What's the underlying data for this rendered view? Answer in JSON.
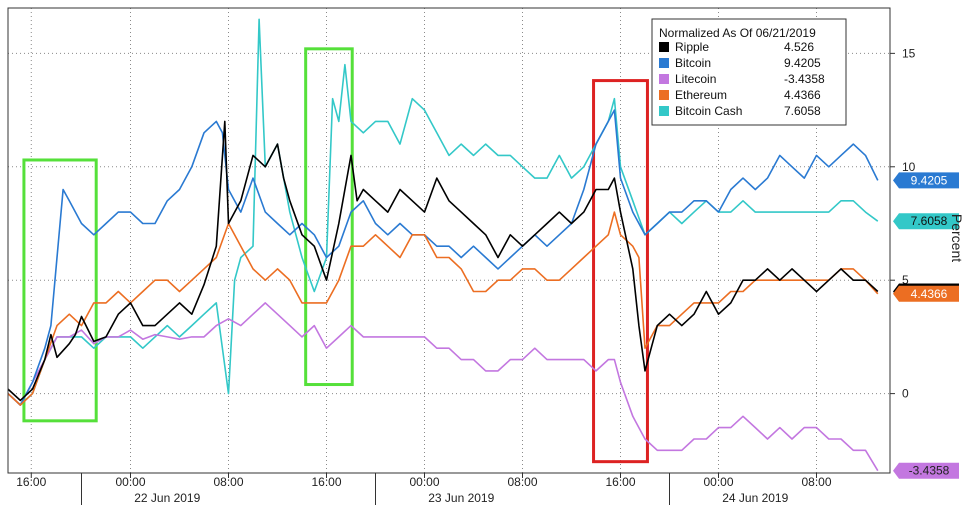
{
  "chart_data": {
    "type": "line",
    "title": "",
    "ylabel": "Percent",
    "ylim": [
      -3.5,
      17
    ],
    "y_ticks": [
      0,
      5,
      10,
      15
    ],
    "grid": true,
    "legend": {
      "placement": "top-right",
      "title": "Normalized As Of 06/21/2019"
    },
    "x_ticks": [
      {
        "pos": 15.9,
        "label": "16:00"
      },
      {
        "pos": 24,
        "label": "00:00"
      },
      {
        "pos": 32,
        "label": "08:00"
      },
      {
        "pos": 40,
        "label": "16:00"
      },
      {
        "pos": 48,
        "label": "00:00"
      },
      {
        "pos": 56,
        "label": "08:00"
      },
      {
        "pos": 64,
        "label": "16:00"
      },
      {
        "pos": 72,
        "label": "00:00"
      },
      {
        "pos": 80,
        "label": "08:00"
      }
    ],
    "x_dividers": [
      20,
      44,
      68
    ],
    "date_labels": [
      {
        "pos": 27,
        "label": "22 Jun 2019"
      },
      {
        "pos": 51,
        "label": "23 Jun 2019"
      },
      {
        "pos": 75,
        "label": "24 Jun 2019"
      }
    ],
    "highlights": [
      {
        "x0": 15.3,
        "x1": 21.2,
        "y0": -1.2,
        "y1": 10.3,
        "color": "#55e03a"
      },
      {
        "x0": 38.3,
        "x1": 42.1,
        "y0": 0.4,
        "y1": 15.2,
        "color": "#55e03a"
      },
      {
        "x0": 61.8,
        "x1": 66.2,
        "y0": -3.0,
        "y1": 13.8,
        "color": "#dd2222"
      }
    ],
    "series": [
      {
        "name": "Ripple",
        "value_label": "4.526",
        "color": "#000000",
        "x": [
          14.0,
          15.0,
          16.0,
          17.0,
          17.5,
          18.0,
          19.0,
          19.5,
          20.0,
          21.0,
          22.0,
          23.0,
          24.0,
          25.0,
          26.0,
          27.0,
          28.0,
          29.0,
          30.0,
          31.0,
          31.7,
          32.0,
          33.0,
          34.0,
          35.0,
          36.0,
          36.5,
          37.0,
          38.0,
          39.0,
          40.0,
          41.0,
          42.0,
          42.5,
          43.0,
          44.0,
          45.0,
          46.0,
          47.0,
          48.0,
          49.0,
          50.0,
          51.0,
          52.0,
          53.0,
          54.0,
          55.0,
          56.0,
          57.0,
          58.0,
          59.0,
          60.0,
          61.0,
          62.0,
          63.0,
          63.5,
          64.0,
          65.0,
          65.5,
          66.0,
          67.0,
          68.0,
          69.0,
          70.0,
          71.0,
          72.0,
          73.0,
          74.0,
          75.0,
          76.0,
          77.0,
          78.0,
          79.0,
          80.0,
          81.0,
          82.0,
          83.0,
          84.0,
          85.0
        ],
        "y": [
          0.2,
          -0.3,
          0.2,
          1.5,
          2.6,
          1.6,
          2.2,
          2.6,
          3.4,
          2.3,
          2.5,
          3.5,
          4.0,
          3.0,
          3.0,
          3.5,
          4.0,
          3.5,
          4.8,
          6.5,
          12.0,
          7.5,
          8.5,
          10.5,
          10.0,
          11.0,
          9.5,
          8.5,
          7.0,
          6.5,
          5.0,
          7.5,
          10.5,
          8.5,
          9.0,
          8.5,
          8.0,
          9.0,
          8.5,
          8.0,
          9.5,
          8.5,
          8.0,
          7.5,
          7.0,
          6.0,
          7.0,
          6.5,
          7.0,
          7.5,
          8.0,
          7.5,
          8.0,
          9.0,
          9.0,
          9.5,
          8.0,
          5.5,
          3.0,
          1.0,
          3.0,
          3.5,
          3.0,
          3.5,
          4.5,
          3.5,
          4.0,
          5.0,
          5.0,
          5.5,
          5.0,
          5.5,
          5.0,
          4.5,
          5.0,
          5.5,
          5.0,
          5.0,
          4.5
        ]
      },
      {
        "name": "Bitcoin",
        "value_label": "9.4205",
        "color": "#2a7ad2",
        "x": [
          14.0,
          15.0,
          16.0,
          17.0,
          17.5,
          18.0,
          18.5,
          19.0,
          20.0,
          21.0,
          22.0,
          23.0,
          24.0,
          25.0,
          26.0,
          27.0,
          28.0,
          29.0,
          30.0,
          31.0,
          31.5,
          32.0,
          33.0,
          34.0,
          35.0,
          36.0,
          37.0,
          38.0,
          39.0,
          40.0,
          41.0,
          42.0,
          43.0,
          44.0,
          45.0,
          46.0,
          47.0,
          48.0,
          49.0,
          50.0,
          51.0,
          52.0,
          53.0,
          54.0,
          55.0,
          56.0,
          57.0,
          58.0,
          59.0,
          60.0,
          61.0,
          62.0,
          63.0,
          63.5,
          64.0,
          65.0,
          66.0,
          67.0,
          68.0,
          69.0,
          70.0,
          71.0,
          72.0,
          73.0,
          74.0,
          75.0,
          76.0,
          77.0,
          78.0,
          79.0,
          80.0,
          81.0,
          82.0,
          83.0,
          84.0,
          85.0
        ],
        "y": [
          0.0,
          -0.5,
          0.5,
          2.0,
          3.0,
          6.0,
          9.0,
          8.5,
          7.5,
          7.0,
          7.5,
          8.0,
          8.0,
          7.5,
          7.5,
          8.5,
          9.0,
          10.0,
          11.5,
          12.0,
          11.5,
          9.0,
          8.0,
          9.5,
          8.0,
          7.5,
          7.0,
          7.5,
          7.0,
          6.0,
          6.5,
          8.0,
          8.5,
          7.5,
          7.0,
          7.5,
          7.0,
          7.0,
          6.5,
          6.5,
          6.0,
          6.5,
          6.0,
          5.5,
          6.0,
          6.5,
          7.0,
          6.5,
          7.0,
          7.5,
          9.0,
          11.0,
          12.0,
          12.5,
          9.5,
          8.0,
          7.0,
          7.5,
          8.0,
          8.0,
          8.5,
          8.5,
          8.0,
          9.0,
          9.5,
          9.0,
          9.5,
          10.5,
          10.0,
          9.5,
          10.5,
          10.0,
          10.5,
          11.0,
          10.5,
          9.4
        ]
      },
      {
        "name": "Litecoin",
        "value_label": "-3.4358",
        "color": "#c377e0",
        "x": [
          14.0,
          15.0,
          16.0,
          17.0,
          18.0,
          19.0,
          20.0,
          21.0,
          22.0,
          23.0,
          24.0,
          25.0,
          26.0,
          27.0,
          28.0,
          29.0,
          30.0,
          31.0,
          32.0,
          33.0,
          34.0,
          35.0,
          36.0,
          37.0,
          38.0,
          39.0,
          40.0,
          41.0,
          42.0,
          43.0,
          44.0,
          45.0,
          46.0,
          47.0,
          48.0,
          49.0,
          50.0,
          51.0,
          52.0,
          53.0,
          54.0,
          55.0,
          56.0,
          57.0,
          58.0,
          59.0,
          60.0,
          61.0,
          62.0,
          63.0,
          63.5,
          64.0,
          65.0,
          66.0,
          67.0,
          68.0,
          69.0,
          70.0,
          71.0,
          72.0,
          73.0,
          74.0,
          75.0,
          76.0,
          77.0,
          78.0,
          79.0,
          80.0,
          81.0,
          82.0,
          83.0,
          84.0,
          85.0
        ],
        "y": [
          0.0,
          -0.5,
          0.5,
          1.5,
          2.5,
          2.5,
          2.8,
          2.2,
          2.5,
          2.5,
          2.8,
          2.4,
          2.6,
          2.5,
          2.4,
          2.5,
          2.5,
          3.0,
          3.3,
          3.0,
          3.5,
          4.0,
          3.5,
          3.0,
          2.5,
          3.0,
          2.0,
          2.5,
          3.0,
          2.5,
          2.5,
          2.5,
          2.5,
          2.5,
          2.5,
          2.0,
          2.0,
          1.5,
          1.5,
          1.0,
          1.0,
          1.5,
          1.5,
          2.0,
          1.5,
          1.5,
          1.5,
          1.5,
          1.0,
          1.5,
          1.5,
          0.5,
          -1.0,
          -2.0,
          -2.5,
          -2.5,
          -2.5,
          -2.0,
          -2.0,
          -1.5,
          -1.5,
          -1.0,
          -1.5,
          -2.0,
          -1.5,
          -2.0,
          -1.5,
          -1.5,
          -2.0,
          -2.0,
          -2.5,
          -2.5,
          -3.4
        ]
      },
      {
        "name": "Ethereum",
        "value_label": "4.4366",
        "color": "#ec6e22",
        "x": [
          14.0,
          15.0,
          16.0,
          17.0,
          18.0,
          19.0,
          20.0,
          21.0,
          22.0,
          23.0,
          24.0,
          25.0,
          26.0,
          27.0,
          28.0,
          29.0,
          30.0,
          31.0,
          32.0,
          33.0,
          34.0,
          35.0,
          36.0,
          37.0,
          38.0,
          39.0,
          40.0,
          41.0,
          42.0,
          43.0,
          44.0,
          45.0,
          46.0,
          47.0,
          48.0,
          49.0,
          50.0,
          51.0,
          52.0,
          53.0,
          54.0,
          55.0,
          56.0,
          57.0,
          58.0,
          59.0,
          60.0,
          61.0,
          62.0,
          63.0,
          63.5,
          64.0,
          65.0,
          65.5,
          66.0,
          67.0,
          68.0,
          69.0,
          70.0,
          71.0,
          72.0,
          73.0,
          74.0,
          75.0,
          76.0,
          77.0,
          78.0,
          79.0,
          80.0,
          81.0,
          82.0,
          83.0,
          84.0,
          85.0
        ],
        "y": [
          0.0,
          -0.5,
          0.0,
          1.5,
          3.0,
          3.5,
          3.0,
          4.0,
          4.0,
          4.5,
          4.0,
          4.5,
          5.0,
          5.0,
          4.5,
          5.0,
          5.5,
          6.0,
          7.5,
          6.5,
          5.5,
          5.0,
          5.5,
          5.0,
          4.0,
          4.0,
          4.0,
          5.0,
          6.5,
          6.5,
          7.0,
          6.5,
          6.0,
          7.0,
          7.0,
          6.0,
          6.0,
          5.5,
          4.5,
          4.5,
          5.0,
          5.0,
          5.5,
          5.5,
          5.0,
          5.0,
          5.5,
          6.0,
          6.5,
          7.0,
          8.0,
          7.0,
          6.5,
          6.0,
          2.0,
          3.0,
          3.0,
          3.5,
          4.0,
          4.0,
          4.0,
          4.5,
          4.5,
          5.0,
          5.0,
          5.0,
          5.0,
          5.0,
          5.0,
          5.0,
          5.5,
          5.5,
          5.0,
          4.4
        ]
      },
      {
        "name": "Bitcoin Cash",
        "value_label": "7.6058",
        "color": "#33c8c8",
        "x": [
          14.0,
          15.0,
          16.0,
          17.0,
          18.0,
          19.0,
          20.0,
          21.0,
          22.0,
          23.0,
          24.0,
          25.0,
          26.0,
          27.0,
          28.0,
          29.0,
          30.0,
          31.0,
          31.5,
          32.0,
          32.5,
          33.0,
          34.0,
          34.5,
          35.0,
          36.0,
          37.0,
          38.0,
          39.0,
          40.0,
          40.5,
          41.0,
          41.5,
          42.0,
          43.0,
          44.0,
          45.0,
          46.0,
          47.0,
          48.0,
          49.0,
          50.0,
          51.0,
          52.0,
          53.0,
          54.0,
          55.0,
          56.0,
          57.0,
          58.0,
          59.0,
          60.0,
          61.0,
          62.0,
          63.0,
          63.5,
          64.0,
          65.0,
          66.0,
          67.0,
          68.0,
          69.0,
          70.0,
          71.0,
          72.0,
          73.0,
          74.0,
          75.0,
          76.0,
          77.0,
          78.0,
          79.0,
          80.0,
          81.0,
          82.0,
          83.0,
          84.0,
          85.0
        ],
        "y": [
          0.0,
          -0.5,
          0.0,
          1.5,
          2.5,
          2.5,
          2.5,
          2.0,
          2.5,
          2.5,
          2.5,
          2.0,
          2.5,
          3.0,
          2.5,
          3.0,
          3.5,
          4.0,
          2.0,
          0.0,
          5.0,
          6.0,
          6.5,
          16.5,
          10.0,
          11.0,
          8.0,
          6.0,
          4.5,
          6.0,
          13.0,
          12.0,
          14.5,
          12.0,
          11.5,
          12.0,
          12.0,
          11.0,
          13.0,
          12.5,
          11.5,
          10.5,
          11.0,
          10.5,
          11.0,
          10.5,
          10.5,
          10.0,
          9.5,
          9.5,
          10.5,
          9.5,
          10.0,
          11.0,
          12.0,
          13.0,
          10.0,
          8.5,
          7.0,
          7.5,
          8.0,
          7.5,
          8.0,
          8.5,
          8.0,
          8.0,
          8.5,
          8.0,
          8.0,
          8.0,
          8.0,
          8.0,
          8.0,
          8.0,
          8.5,
          8.5,
          8.0,
          7.6
        ]
      }
    ]
  }
}
